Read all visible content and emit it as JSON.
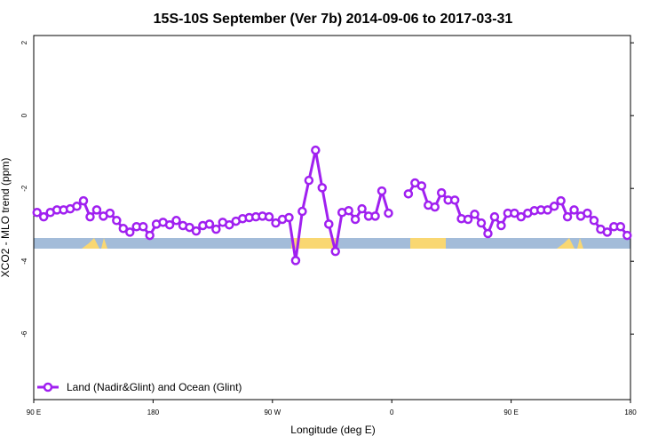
{
  "chart_data": {
    "type": "line",
    "title": "15S-10S September (Ver 7b)   2014-09-06 to 2017-03-31",
    "x_label": "Longitude (deg E)",
    "y_label": "XCO2 - MLO trend (ppm)",
    "xlim": [
      90,
      540
    ],
    "ylim": [
      -7.8,
      2.2
    ],
    "xticks": [
      {
        "value": 90,
        "label": "90 E"
      },
      180,
      {
        "value": 270,
        "label": "90 W"
      },
      {
        "value": 360,
        "label": "0"
      },
      {
        "value": 450,
        "label": "90 E"
      },
      {
        "value": 540,
        "label": "180"
      }
    ],
    "yticks": [
      2,
      0,
      -2,
      -4,
      -6
    ],
    "legend": "bottom-left",
    "x": [
      92.5,
      97.5,
      102.5,
      107.5,
      112.5,
      117.5,
      122.5,
      127.5,
      132.5,
      137.5,
      142.5,
      147.5,
      152.5,
      157.5,
      162.5,
      167.5,
      172.5,
      177.5,
      182.5,
      187.5,
      192.5,
      197.5,
      202.5,
      207.5,
      212.5,
      217.5,
      222.5,
      227.5,
      232.5,
      237.5,
      242.5,
      247.5,
      252.5,
      257.5,
      262.5,
      267.5,
      272.5,
      277.5,
      282.5,
      287.5,
      292.5,
      297.5,
      302.5,
      307.5,
      312.5,
      317.5,
      322.5,
      327.5,
      332.5,
      337.5,
      342.5,
      347.5,
      352.5,
      357.5,
      362.5,
      367.5,
      372.5,
      377.5,
      382.5,
      387.5,
      392.5,
      397.5,
      402.5,
      407.5,
      412.5,
      417.5,
      422.5,
      427.5,
      432.5,
      437.5,
      442.5,
      447.5,
      452.5,
      457.5,
      462.5,
      467.5,
      472.5,
      477.5,
      482.5,
      487.5,
      492.5,
      497.5,
      502.5,
      507.5,
      512.5,
      517.5,
      522.5,
      527.5,
      532.5,
      537.5
    ],
    "series": [
      {
        "name": "Land (Nadir&Glint) and Ocean (Glint)",
        "color": "#a020f0",
        "values": [
          -2.66,
          -2.78,
          -2.66,
          -2.59,
          -2.59,
          -2.56,
          -2.49,
          -2.34,
          -2.78,
          -2.59,
          -2.76,
          -2.68,
          -2.88,
          -3.1,
          -3.2,
          -3.05,
          -3.05,
          -3.29,
          -2.98,
          -2.93,
          -3.0,
          -2.88,
          -3.02,
          -3.07,
          -3.17,
          -3.02,
          -2.98,
          -3.12,
          -2.93,
          -3.0,
          -2.9,
          -2.83,
          -2.8,
          -2.78,
          -2.76,
          -2.78,
          -2.95,
          -2.85,
          -2.8,
          -3.98,
          -2.63,
          -1.78,
          -0.95,
          -1.98,
          -2.98,
          -3.73,
          -2.66,
          -2.61,
          -2.85,
          -2.56,
          -2.76,
          -2.76,
          -2.07,
          -2.68,
          null,
          null,
          -2.15,
          -1.85,
          -1.93,
          -2.46,
          -2.51,
          -2.12,
          -2.32,
          -2.32,
          -2.83,
          -2.85,
          -2.71,
          -2.95,
          -3.24,
          -2.78,
          -3.02,
          -2.68,
          -2.68,
          -2.78,
          -2.68,
          -2.61,
          -2.59,
          -2.59,
          -2.49,
          -2.34,
          -2.78,
          -2.59,
          -2.76,
          -2.68,
          -2.88,
          -3.12,
          -3.2,
          -3.05,
          -3.05,
          -3.29
        ]
      }
    ]
  }
}
